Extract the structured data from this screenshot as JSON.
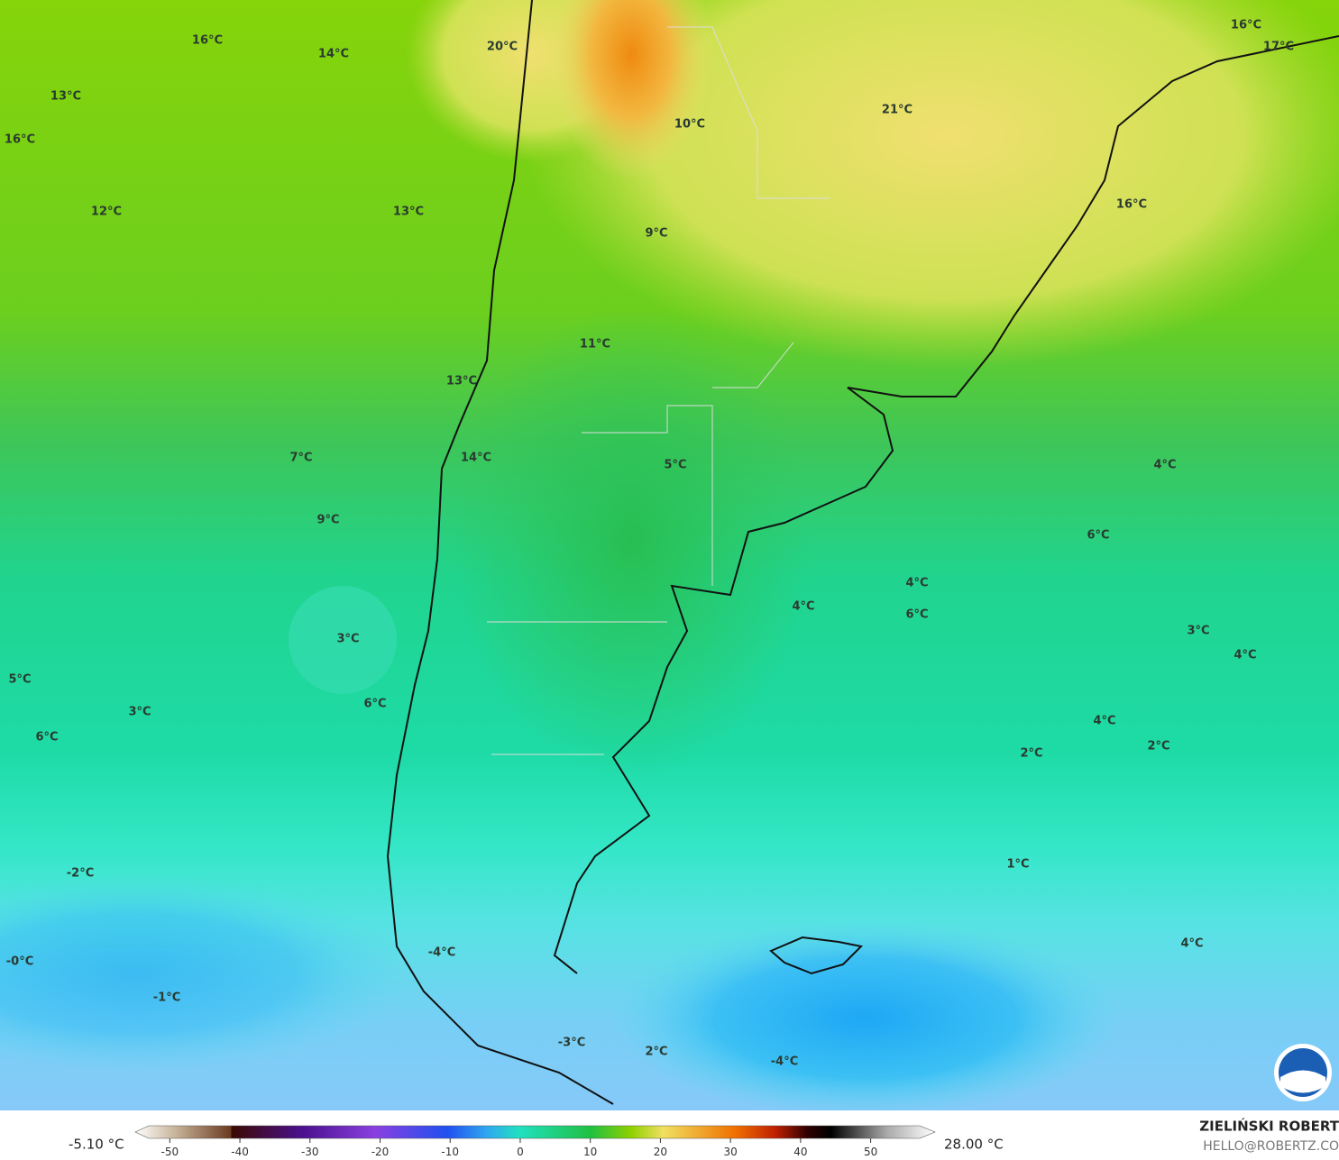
{
  "map": {
    "temperature_labels": [
      "16°C",
      "14°C",
      "20°C",
      "16°C",
      "17°C",
      "13°C",
      "16°C",
      "10°C",
      "21°C",
      "12°C",
      "13°C",
      "16°C",
      "9°C",
      "11°C",
      "13°C",
      "14°C",
      "7°C",
      "5°C",
      "4°C",
      "9°C",
      "6°C",
      "4°C",
      "4°C",
      "6°C",
      "3°C",
      "3°C",
      "4°C",
      "5°C",
      "6°C",
      "3°C",
      "4°C",
      "6°C",
      "2°C",
      "2°C",
      "1°C",
      "-2°C",
      "4°C",
      "-0°C",
      "-4°C",
      "-1°C",
      "-3°C",
      "2°C",
      "-4°C"
    ]
  },
  "colorbar": {
    "min_label": "-5.10 °C",
    "max_label": "28.00 °C",
    "range": [
      -53,
      57
    ],
    "ticks": [
      -50,
      -40,
      -30,
      -20,
      -10,
      0,
      10,
      20,
      30,
      40,
      50
    ]
  },
  "credit": {
    "name": "ZIELIŃSKI ROBERT",
    "email": "HELLO@ROBERTZ.CO"
  }
}
